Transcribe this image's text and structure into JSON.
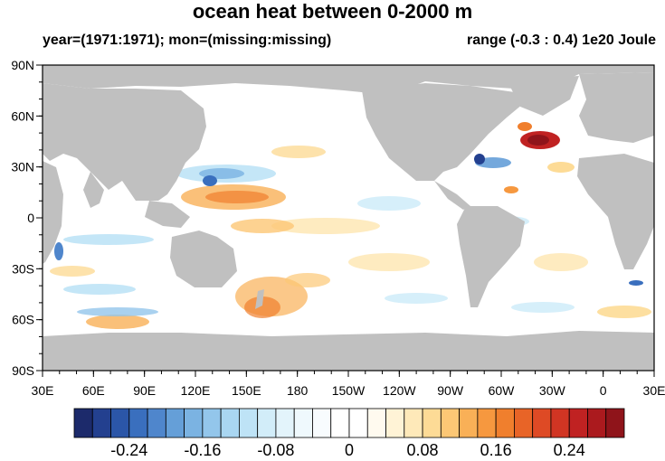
{
  "title": "ocean heat between 0-2000 m",
  "subtitle_left": "year=(1971:1971); mon=(missing:missing)",
  "subtitle_right": "range (-0.3 : 0.4) 1e20 Joule",
  "map": {
    "lon_labels": [
      "30E",
      "60E",
      "90E",
      "120E",
      "150E",
      "180",
      "150W",
      "120W",
      "90W",
      "60W",
      "30W",
      "0",
      "30E"
    ],
    "lat_labels": [
      "90N",
      "60N",
      "30N",
      "0",
      "30S",
      "60S",
      "90S"
    ],
    "lon_range": [
      30,
      390
    ],
    "lat_range": [
      -90,
      90
    ]
  },
  "colorbar": {
    "tick_labels": [
      "-0.24",
      "-0.16",
      "-0.08",
      "0",
      "0.08",
      "0.16",
      "0.24"
    ],
    "tick_values": [
      -0.24,
      -0.16,
      -0.08,
      0,
      0.08,
      0.16,
      0.24
    ],
    "levels": [
      -0.3,
      -0.28,
      -0.26,
      -0.24,
      -0.22,
      -0.2,
      -0.18,
      -0.16,
      -0.14,
      -0.12,
      -0.1,
      -0.08,
      -0.06,
      -0.04,
      -0.02,
      0,
      0.02,
      0.04,
      0.06,
      0.08,
      0.1,
      0.12,
      0.14,
      0.16,
      0.18,
      0.2,
      0.22,
      0.24,
      0.26,
      0.28
    ],
    "colors": [
      "#1c2a6b",
      "#23408f",
      "#2b56a8",
      "#3a6fbe",
      "#4f86cc",
      "#659fd8",
      "#7bb3e2",
      "#93c6eb",
      "#a9d6f1",
      "#bee3f6",
      "#d2edf9",
      "#e3f4fb",
      "#eff9fd",
      "#f8fcfe",
      "#ffffff",
      "#ffffff",
      "#fffaef",
      "#fff3d6",
      "#fee9b9",
      "#fddb96",
      "#fcc775",
      "#f9b057",
      "#f6983f",
      "#f07f2d",
      "#e86427",
      "#de4a25",
      "#d13523",
      "#c02222",
      "#ab1a1e",
      "#8f141a"
    ]
  },
  "colors": {
    "land": "#c0c0c0",
    "ocean": "#ffffff"
  }
}
